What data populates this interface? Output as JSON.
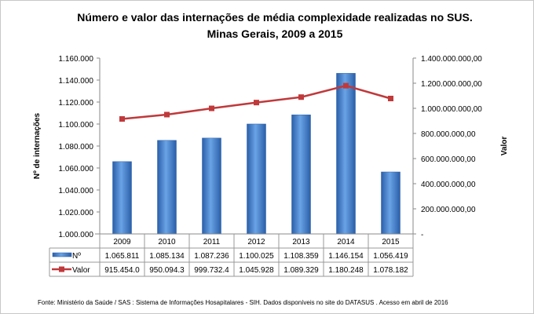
{
  "chart_data": {
    "type": "bar+line",
    "title": "Número e valor das internações de média complexidade realizadas no SUS.",
    "subtitle": "Minas Gerais, 2009 a 2015",
    "categories": [
      "2009",
      "2010",
      "2011",
      "2012",
      "2013",
      "2014",
      "2015"
    ],
    "ylabel_left": "Nº de internações",
    "ylabel_right": "Valor",
    "ylim_left": [
      1000000,
      1160000
    ],
    "ylim_right": [
      0,
      1400000000
    ],
    "left_ticks": [
      "1.000.000",
      "1.020.000",
      "1.040.000",
      "1.060.000",
      "1.080.000",
      "1.100.000",
      "1.120.000",
      "1.140.000",
      "1.160.000"
    ],
    "right_ticks": [
      "-",
      "200.000.000,00",
      "400.000.000,00",
      "600.000.000,00",
      "800.000.000,00",
      "1.000.000.000,00",
      "1.200.000.000,00",
      "1.400.000.000,00"
    ],
    "grid": false,
    "legend": "data-table",
    "series": [
      {
        "name": "Nº",
        "type": "bar",
        "axis": "left",
        "color": "#3f7fcf",
        "values": [
          1065811,
          1085134,
          1087236,
          1100025,
          1108359,
          1146154,
          1056419
        ],
        "labels": [
          "1.065.811",
          "1.085.134",
          "1.087.236",
          "1.100.025",
          "1.108.359",
          "1.146.154",
          "1.056.419"
        ]
      },
      {
        "name": "Valor",
        "type": "line",
        "axis": "right",
        "color": "#c0393b",
        "values": [
          915454000,
          950094300,
          999732400,
          1045928000,
          1089329000,
          1180248000,
          1078182000
        ],
        "labels": [
          "915.454.0",
          "950.094.3",
          "999.732.4",
          "1.045.928",
          "1.089.329",
          "1.180.248",
          "1.078.182"
        ]
      }
    ]
  },
  "footer": "Fonte:  Ministério da Saúde  / SAS : Sistema de Informações Hosapitalares - SIH. Dados disponíveis no site do DATASUS . Acesso em abril de 2016"
}
